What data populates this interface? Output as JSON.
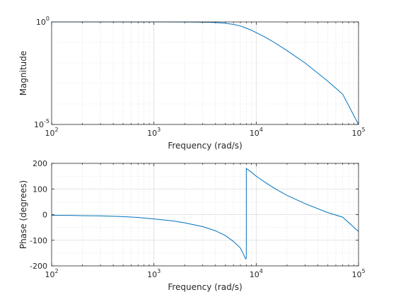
{
  "chart_data": [
    {
      "type": "line",
      "name": "magnitude-plot",
      "xlabel": "Frequency (rad/s)",
      "ylabel": "Magnitude",
      "xscale": "log",
      "yscale": "log",
      "xlim": [
        100,
        100000
      ],
      "ylim": [
        1e-05,
        1
      ],
      "grid": true,
      "minor_grid": true,
      "x_ticks": [
        {
          "base": "10",
          "exp": "2"
        },
        {
          "base": "10",
          "exp": "3"
        },
        {
          "base": "10",
          "exp": "4"
        },
        {
          "base": "10",
          "exp": "5"
        }
      ],
      "y_ticks": [
        {
          "base": "10",
          "exp": "0",
          "value": 1
        },
        {
          "base": "10",
          "exp": "-5",
          "value": 1e-05
        }
      ],
      "series": [
        {
          "color": "#0072BD",
          "x": [
            100,
            200,
            500,
            1000,
            2000,
            3000,
            4000,
            5000,
            6000,
            7000,
            8000,
            9000,
            10000,
            12000,
            15000,
            20000,
            30000,
            50000,
            70000,
            100000
          ],
          "y": [
            1,
            1,
            1,
            1,
            0.99,
            0.97,
            0.93,
            0.86,
            0.76,
            0.63,
            0.5,
            0.39,
            0.3,
            0.19,
            0.1,
            0.04,
            0.01,
            0.0013,
            0.0003,
            1e-05
          ]
        }
      ]
    },
    {
      "type": "line",
      "name": "phase-plot",
      "xlabel": "Frequency (rad/s)",
      "ylabel": "Phase (degrees)",
      "xscale": "log",
      "yscale": "linear",
      "xlim": [
        100,
        100000
      ],
      "ylim": [
        -200,
        200
      ],
      "grid": true,
      "minor_grid": true,
      "x_ticks": [
        {
          "base": "10",
          "exp": "2"
        },
        {
          "base": "10",
          "exp": "3"
        },
        {
          "base": "10",
          "exp": "4"
        },
        {
          "base": "10",
          "exp": "5"
        }
      ],
      "y_ticks": [
        "-200",
        "-100",
        "0",
        "100",
        "200"
      ],
      "series": [
        {
          "color": "#0072BD",
          "x": [
            100,
            150,
            200,
            300,
            500,
            700,
            1000,
            1500,
            2000,
            3000,
            4000,
            5000,
            6000,
            7000,
            7900,
            8000,
            8000,
            9000,
            10000,
            12000,
            15000,
            20000,
            30000,
            50000,
            70000,
            100000
          ],
          "y": [
            -3,
            -3,
            -4,
            -5,
            -8,
            -11,
            -17,
            -24,
            -32,
            -47,
            -63,
            -82,
            -105,
            -130,
            -173,
            -170,
            180,
            165,
            150,
            128,
            103,
            75,
            43,
            8,
            -10,
            -66
          ]
        }
      ]
    }
  ]
}
